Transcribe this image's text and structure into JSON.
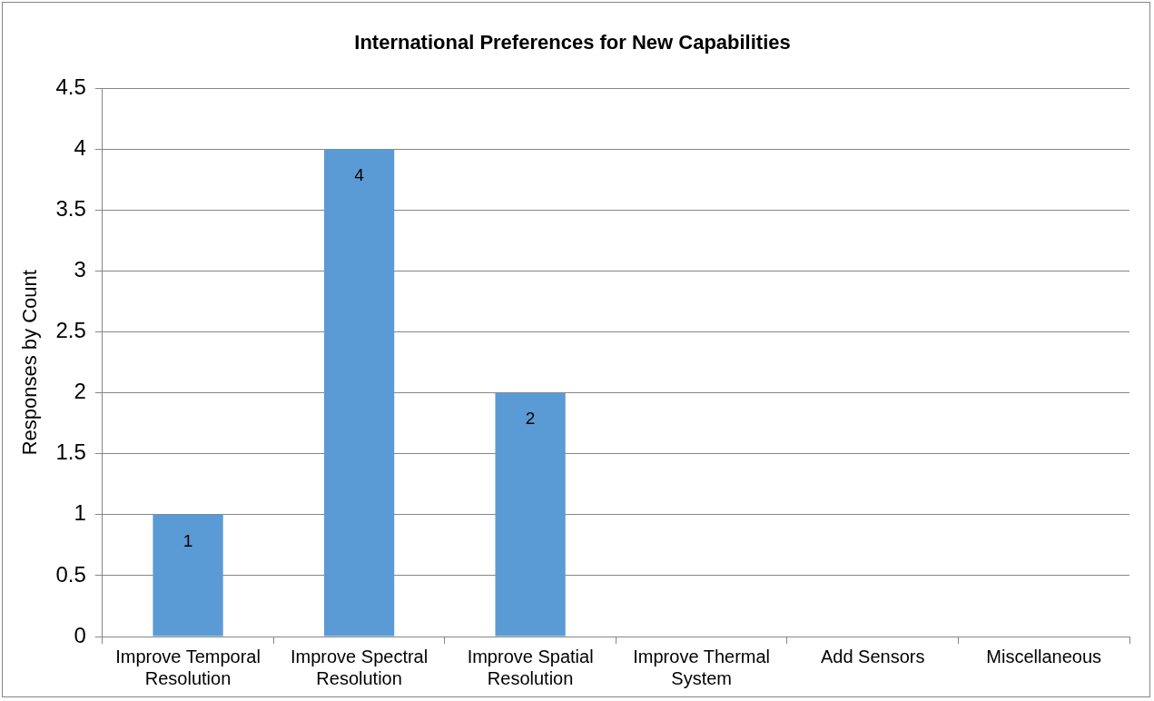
{
  "chart_data": {
    "type": "bar",
    "title": "International Preferences for New Capabilities",
    "ylabel": "Responses by Count",
    "categories": [
      "Improve Temporal Resolution",
      "Improve Spectral Resolution",
      "Improve Spatial Resolution",
      "Improve Thermal System",
      "Add Sensors",
      "Miscellaneous"
    ],
    "values": [
      1,
      4,
      2,
      0,
      0,
      0
    ],
    "value_labels": [
      "1",
      "4",
      "2",
      null,
      null,
      null
    ],
    "color": "#5b9bd5",
    "ylim": [
      0,
      4.5
    ],
    "yticks": [
      0,
      0.5,
      1,
      1.5,
      2,
      2.5,
      3,
      3.5,
      4,
      4.5
    ],
    "grid": "y",
    "legend": false
  }
}
